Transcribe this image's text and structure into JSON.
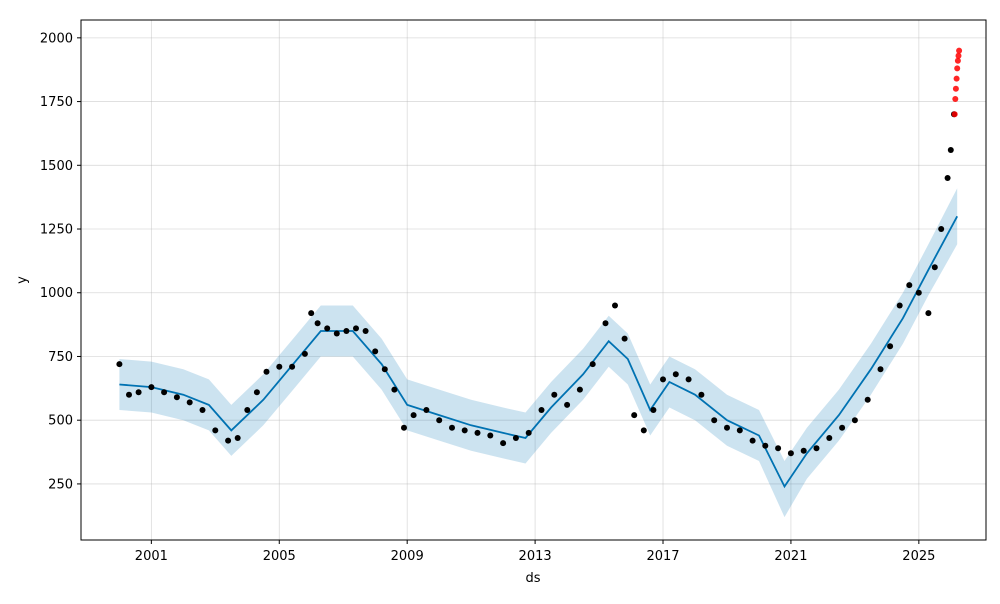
{
  "chart_data": {
    "type": "scatter",
    "title": "",
    "xlabel": "ds",
    "ylabel": "y",
    "xlim": [
      1998.8,
      2027.1
    ],
    "ylim": [
      30,
      2070
    ],
    "x_ticks": [
      2001,
      2005,
      2009,
      2013,
      2017,
      2021,
      2025
    ],
    "x_tick_labels": [
      "2001",
      "2005",
      "2009",
      "2013",
      "2017",
      "2021",
      "2025"
    ],
    "y_ticks": [
      250,
      500,
      750,
      1000,
      1250,
      1500,
      1750,
      2000
    ],
    "y_tick_labels": [
      "250",
      "500",
      "750",
      "1000",
      "1250",
      "1500",
      "1750",
      "2000"
    ],
    "grid": true,
    "colors": {
      "observed": "#000000",
      "forecast": "#0072B2",
      "interval": "#0072B2",
      "holdout": "#ff0000"
    },
    "series": [
      {
        "kind": "observed_points",
        "x": [
          2000.0,
          2000.3,
          2000.6,
          2001.0,
          2001.4,
          2001.8,
          2002.2,
          2002.6,
          2003.0,
          2003.4,
          2003.7,
          2004.0,
          2004.3,
          2004.6,
          2005.0,
          2005.4,
          2005.8,
          2006.0,
          2006.2,
          2006.5,
          2006.8,
          2007.1,
          2007.4,
          2007.7,
          2008.0,
          2008.3,
          2008.6,
          2008.9,
          2009.2,
          2009.6,
          2010.0,
          2010.4,
          2010.8,
          2011.2,
          2011.6,
          2012.0,
          2012.4,
          2012.8,
          2013.2,
          2013.6,
          2014.0,
          2014.4,
          2014.8,
          2015.2,
          2015.5,
          2015.8,
          2016.1,
          2016.4,
          2016.7,
          2017.0,
          2017.4,
          2017.8,
          2018.2,
          2018.6,
          2019.0,
          2019.4,
          2019.8,
          2020.2,
          2020.6,
          2021.0,
          2021.4,
          2021.8,
          2022.2,
          2022.6,
          2023.0,
          2023.4,
          2023.8,
          2024.1,
          2024.4,
          2024.7,
          2025.0,
          2025.3,
          2025.5,
          2025.7,
          2025.9,
          2026.0,
          2026.1
        ],
        "y": [
          720,
          600,
          610,
          630,
          610,
          590,
          570,
          540,
          460,
          420,
          430,
          540,
          610,
          690,
          710,
          710,
          760,
          920,
          880,
          860,
          840,
          850,
          860,
          850,
          770,
          700,
          620,
          470,
          520,
          540,
          500,
          470,
          460,
          450,
          440,
          410,
          430,
          450,
          540,
          600,
          560,
          620,
          720,
          880,
          950,
          820,
          520,
          460,
          540,
          660,
          680,
          660,
          600,
          500,
          470,
          460,
          420,
          400,
          390,
          370,
          380,
          390,
          430,
          470,
          500,
          580,
          700,
          790,
          950,
          1030,
          1000,
          920,
          1100,
          1250,
          1450,
          1560,
          1700
        ]
      },
      {
        "kind": "holdout_points",
        "x": [
          2026.12,
          2026.14,
          2026.16,
          2026.18,
          2026.2,
          2026.22,
          2026.24,
          2026.26
        ],
        "y": [
          1700,
          1760,
          1800,
          1840,
          1880,
          1910,
          1930,
          1950
        ]
      },
      {
        "kind": "forecast_line",
        "x": [
          2000.0,
          2001.0,
          2002.0,
          2002.8,
          2003.5,
          2004.5,
          2005.5,
          2006.3,
          2007.3,
          2008.2,
          2009.0,
          2010.0,
          2011.0,
          2012.0,
          2012.7,
          2013.5,
          2014.5,
          2015.3,
          2015.9,
          2016.6,
          2017.2,
          2018.0,
          2019.0,
          2020.0,
          2020.8,
          2021.5,
          2022.5,
          2023.5,
          2024.5,
          2025.3,
          2026.2
        ],
        "y": [
          640,
          630,
          600,
          560,
          460,
          580,
          730,
          850,
          850,
          720,
          560,
          520,
          480,
          450,
          430,
          550,
          680,
          810,
          740,
          540,
          650,
          600,
          500,
          440,
          240,
          370,
          520,
          700,
          900,
          1090,
          1300
        ]
      },
      {
        "kind": "interval_upper",
        "x": [
          2000.0,
          2001.0,
          2002.0,
          2002.8,
          2003.5,
          2004.5,
          2005.5,
          2006.3,
          2007.3,
          2008.2,
          2009.0,
          2010.0,
          2011.0,
          2012.0,
          2012.7,
          2013.5,
          2014.5,
          2015.3,
          2015.9,
          2016.6,
          2017.2,
          2018.0,
          2019.0,
          2020.0,
          2020.8,
          2021.5,
          2022.5,
          2023.5,
          2024.5,
          2025.3,
          2026.2
        ],
        "y": [
          740,
          730,
          700,
          660,
          560,
          680,
          830,
          950,
          950,
          820,
          660,
          620,
          580,
          550,
          530,
          650,
          780,
          910,
          840,
          640,
          750,
          700,
          600,
          540,
          340,
          470,
          620,
          800,
          1000,
          1190,
          1410
        ]
      },
      {
        "kind": "interval_lower",
        "x": [
          2000.0,
          2001.0,
          2002.0,
          2002.8,
          2003.5,
          2004.5,
          2005.5,
          2006.3,
          2007.3,
          2008.2,
          2009.0,
          2010.0,
          2011.0,
          2012.0,
          2012.7,
          2013.5,
          2014.5,
          2015.3,
          2015.9,
          2016.6,
          2017.2,
          2018.0,
          2019.0,
          2020.0,
          2020.8,
          2021.5,
          2022.5,
          2023.5,
          2024.5,
          2025.3,
          2026.2
        ],
        "y": [
          540,
          530,
          500,
          460,
          360,
          480,
          630,
          750,
          750,
          620,
          460,
          420,
          380,
          350,
          330,
          450,
          580,
          710,
          640,
          440,
          550,
          500,
          400,
          340,
          120,
          270,
          420,
          600,
          800,
          990,
          1190
        ]
      }
    ]
  }
}
